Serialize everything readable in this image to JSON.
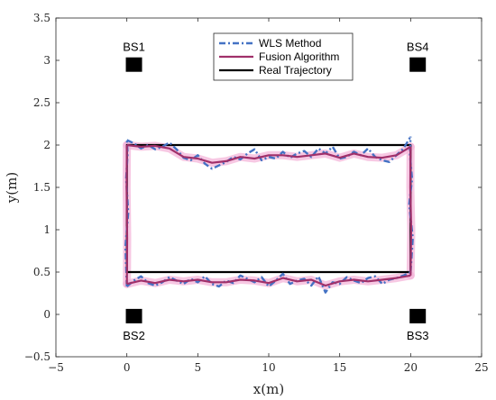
{
  "chart_data": {
    "type": "line",
    "title": "",
    "xlabel": "x(m)",
    "ylabel": "y(m)",
    "xlim": [
      -5,
      25
    ],
    "ylim": [
      -0.5,
      3.5
    ],
    "xticks": [
      -5,
      0,
      5,
      10,
      15,
      20,
      25
    ],
    "yticks": [
      -0.5,
      0,
      0.5,
      1,
      1.5,
      2,
      2.5,
      3,
      3.5
    ],
    "xtick_labels": [
      "−5",
      "0",
      "5",
      "10",
      "15",
      "20",
      "25"
    ],
    "ytick_labels": [
      "−0.5",
      "0",
      "0.5",
      "1",
      "1.5",
      "2",
      "2.5",
      "3",
      "3.5"
    ],
    "grid": false,
    "legend_position": "top-center",
    "colors": {
      "wls": "#4472C4",
      "fusion": "#A0306A",
      "real": "#000000",
      "band": "#F4B6DA"
    },
    "base_stations": [
      {
        "name": "BS1",
        "x": 0.5,
        "y": 2.95
      },
      {
        "name": "BS2",
        "x": 0.5,
        "y": -0.02
      },
      {
        "name": "BS3",
        "x": 20.5,
        "y": -0.02
      },
      {
        "name": "BS4",
        "x": 20.5,
        "y": 2.95
      }
    ],
    "series": [
      {
        "name": "WLS Method",
        "style": "dash-dot",
        "segments": [
          {
            "x": [
              0,
              0.5,
              1,
              1.5,
              2,
              2.5,
              3,
              3.5,
              4,
              4.5,
              5,
              5.5,
              6,
              6.5,
              7,
              7.5,
              8,
              8.5,
              9,
              9.5,
              10,
              10.5,
              11,
              11.5,
              12,
              12.5,
              13,
              13.5,
              14,
              14.5,
              15,
              15.5,
              16,
              16.5,
              17,
              17.5,
              18,
              18.5,
              19,
              19.5,
              20
            ],
            "y": [
              2.06,
              2.02,
              1.96,
              2.0,
              1.95,
              1.98,
              2.03,
              1.95,
              1.85,
              1.82,
              1.88,
              1.78,
              1.72,
              1.76,
              1.8,
              1.86,
              1.83,
              1.9,
              1.95,
              1.82,
              1.86,
              1.84,
              1.92,
              1.85,
              1.9,
              1.93,
              1.86,
              1.96,
              1.9,
              1.98,
              1.84,
              1.86,
              1.92,
              1.88,
              1.96,
              1.86,
              1.82,
              1.8,
              1.88,
              1.96,
              2.1
            ]
          },
          {
            "x": [
              0,
              0.5,
              1,
              1.5,
              2,
              2.5,
              3,
              3.5,
              4,
              4.5,
              5,
              5.5,
              6,
              6.5,
              7,
              7.5,
              8,
              8.5,
              9,
              9.5,
              10,
              10.5,
              11,
              11.5,
              12,
              12.5,
              13,
              13.5,
              14,
              14.5,
              15,
              15.5,
              16,
              16.5,
              17,
              17.5,
              18,
              18.5,
              19,
              19.5,
              20
            ],
            "y": [
              0.33,
              0.4,
              0.45,
              0.37,
              0.34,
              0.38,
              0.44,
              0.4,
              0.36,
              0.42,
              0.38,
              0.45,
              0.36,
              0.33,
              0.4,
              0.37,
              0.46,
              0.42,
              0.38,
              0.44,
              0.33,
              0.4,
              0.48,
              0.36,
              0.4,
              0.42,
              0.34,
              0.45,
              0.26,
              0.38,
              0.36,
              0.44,
              0.4,
              0.37,
              0.43,
              0.45,
              0.36,
              0.41,
              0.43,
              0.46,
              0.5
            ]
          },
          {
            "x": [
              0.0,
              -0.1,
              0.1,
              -0.05,
              0.05,
              0.0
            ],
            "y": [
              0.33,
              0.8,
              1.2,
              1.6,
              1.9,
              2.06
            ]
          },
          {
            "x": [
              20.0,
              20.15,
              19.9,
              20.1,
              19.95,
              20.0
            ],
            "y": [
              0.5,
              0.9,
              1.3,
              1.6,
              1.9,
              2.1
            ]
          }
        ]
      },
      {
        "name": "Fusion Algorithm",
        "style": "solid",
        "segments": [
          {
            "x": [
              0,
              1,
              2,
              3,
              4,
              5,
              6,
              7,
              8,
              9,
              10,
              11,
              12,
              13,
              14,
              15,
              16,
              17,
              18,
              19,
              20
            ],
            "y": [
              2.0,
              1.98,
              1.99,
              1.96,
              1.86,
              1.84,
              1.79,
              1.81,
              1.86,
              1.84,
              1.88,
              1.88,
              1.86,
              1.88,
              1.9,
              1.85,
              1.9,
              1.86,
              1.85,
              1.88,
              1.98
            ]
          },
          {
            "x": [
              0,
              1,
              2,
              3,
              4,
              5,
              6,
              7,
              8,
              9,
              10,
              11,
              12,
              13,
              14,
              15,
              16,
              17,
              18,
              19,
              20
            ],
            "y": [
              0.36,
              0.4,
              0.37,
              0.41,
              0.39,
              0.41,
              0.38,
              0.38,
              0.41,
              0.4,
              0.37,
              0.43,
              0.39,
              0.41,
              0.34,
              0.39,
              0.41,
              0.39,
              0.41,
              0.43,
              0.46
            ]
          },
          {
            "x": [
              0.0,
              0.02,
              -0.02,
              0.0
            ],
            "y": [
              0.36,
              0.9,
              1.5,
              2.0
            ]
          },
          {
            "x": [
              20.0,
              20.04,
              19.98,
              20.0
            ],
            "y": [
              0.46,
              1.0,
              1.5,
              1.98
            ]
          }
        ]
      },
      {
        "name": "Real Trajectory",
        "style": "solid",
        "segments": [
          {
            "x": [
              0,
              20,
              20,
              0,
              0
            ],
            "y": [
              0.5,
              0.5,
              2,
              2,
              0.5
            ]
          }
        ]
      }
    ]
  }
}
